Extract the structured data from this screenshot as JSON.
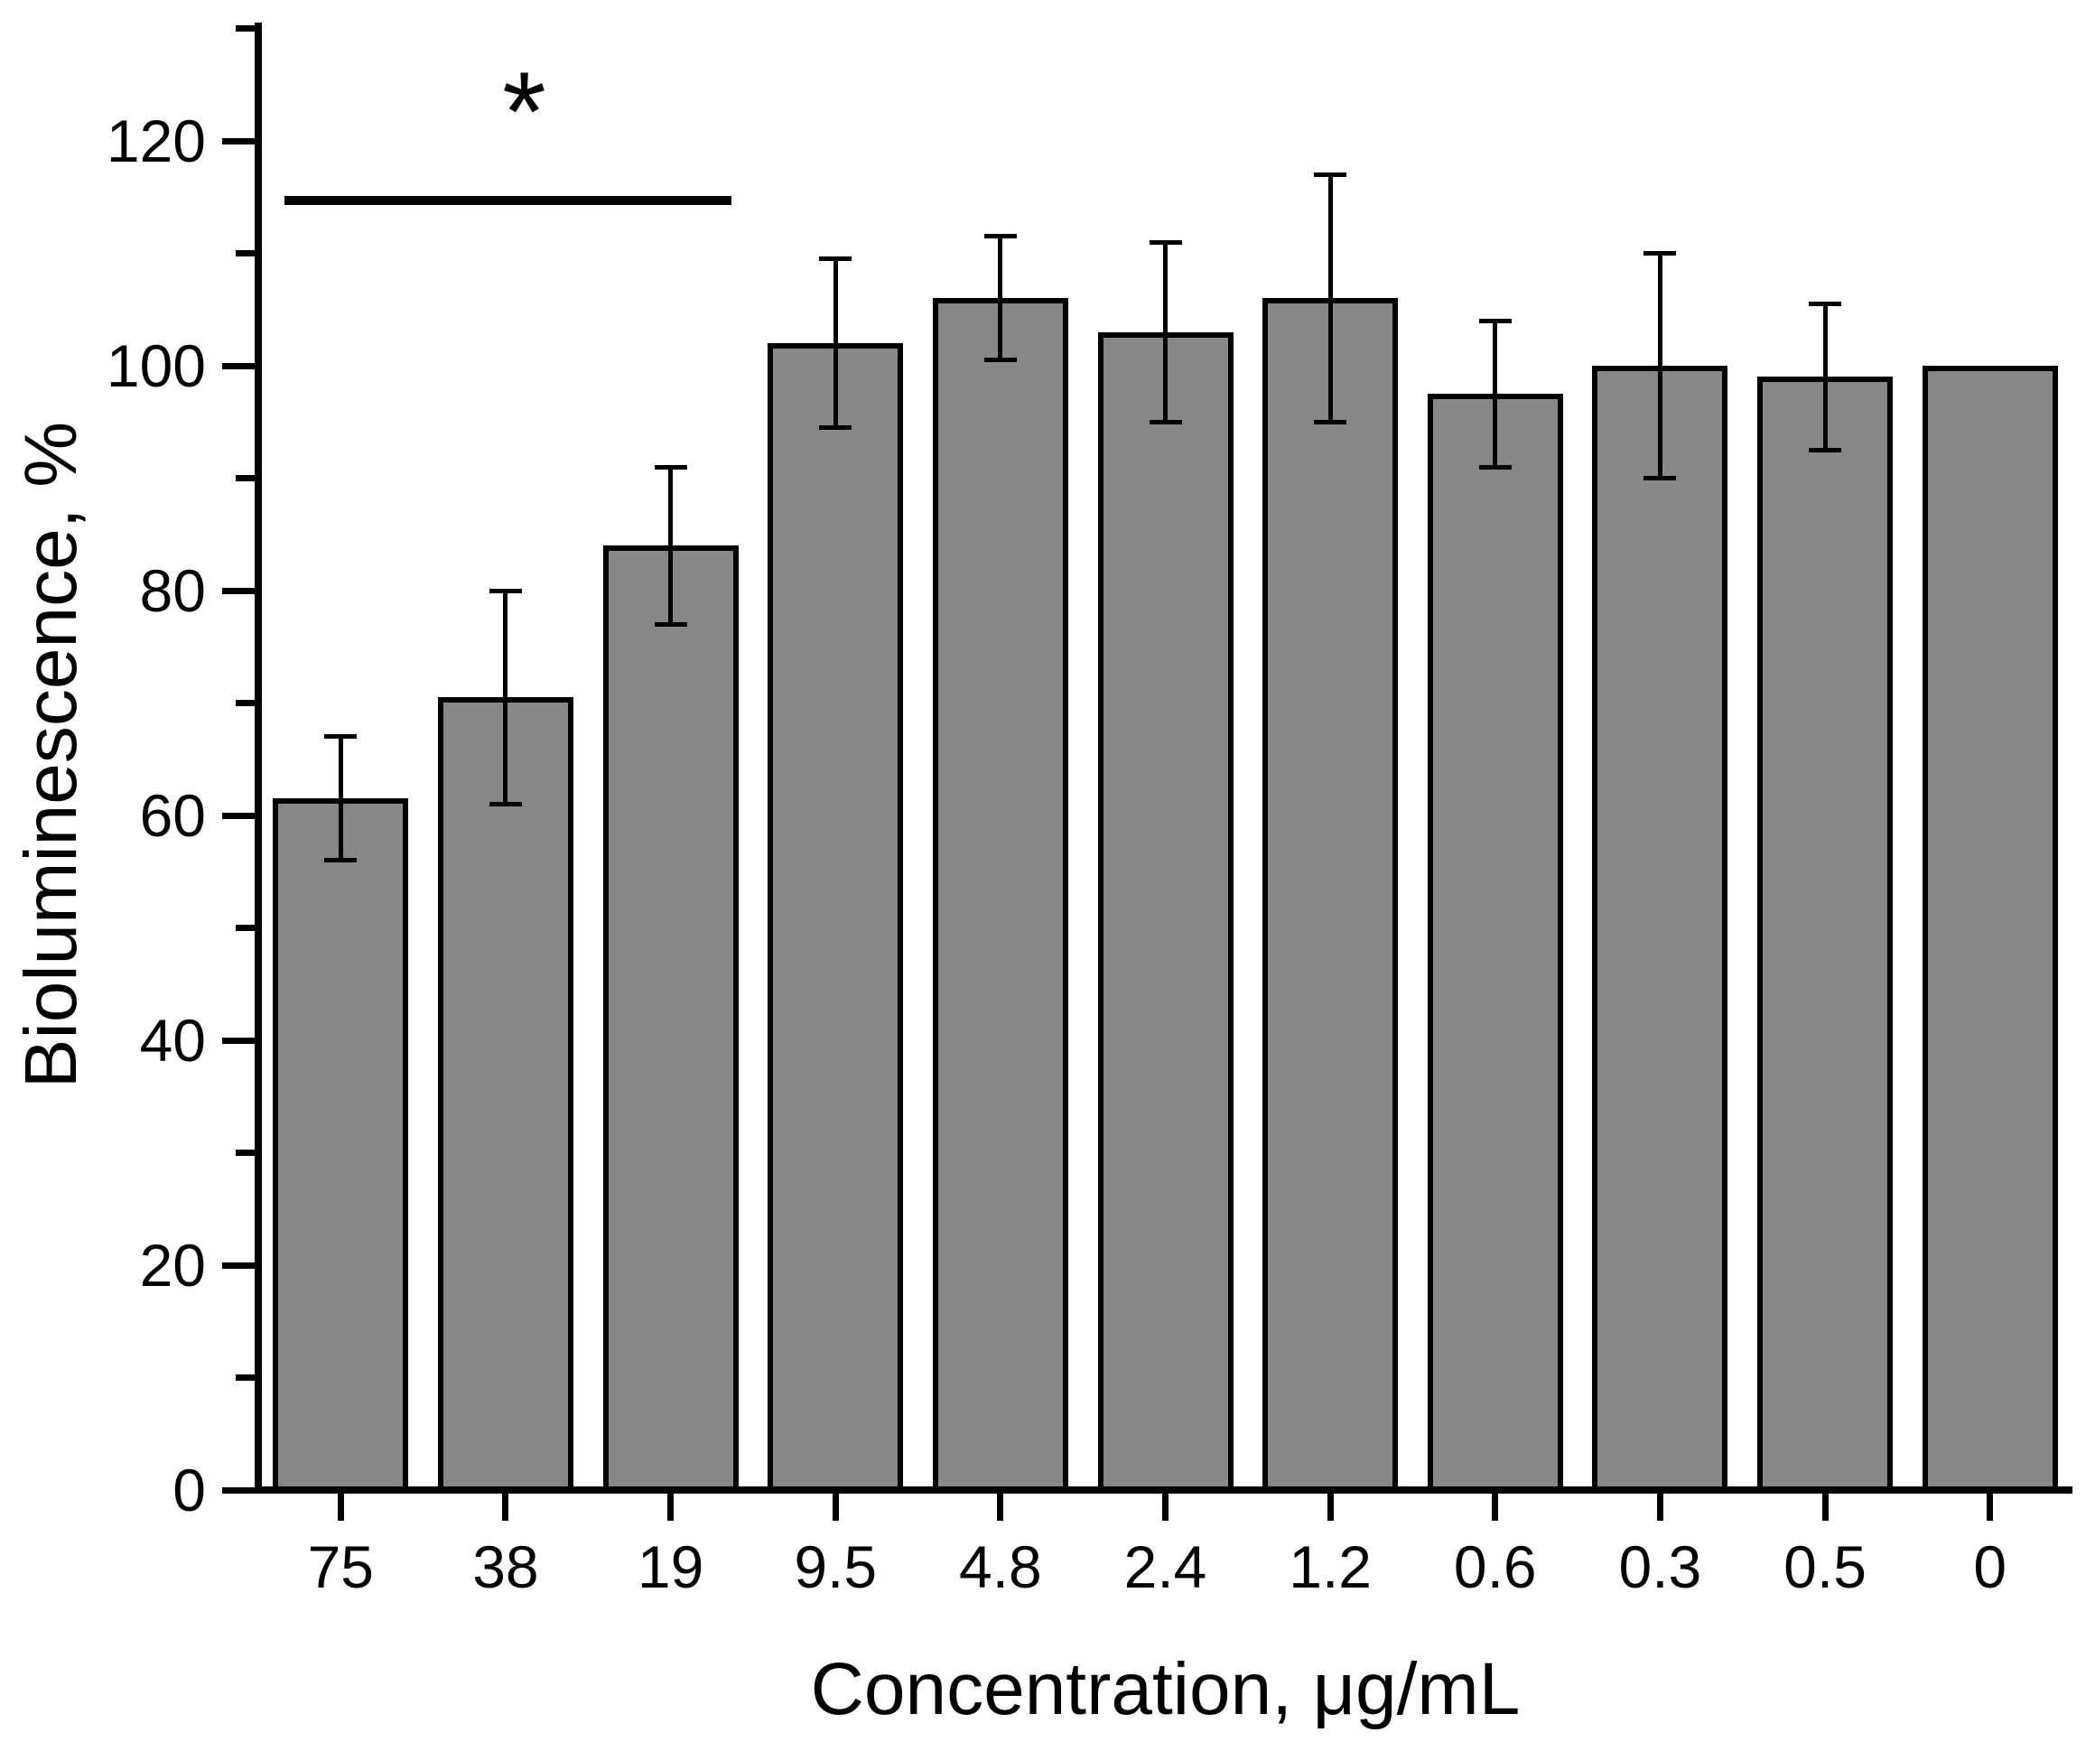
{
  "figure": {
    "background_color": "#ffffff",
    "axis_color": "#000000"
  },
  "chart_data": {
    "type": "bar",
    "title": "",
    "xlabel": "Concentration, μg/mL",
    "ylabel": "Bioluminescence, %",
    "categories": [
      "75",
      "38",
      "19",
      "9.5",
      "4.8",
      "2.4",
      "1.2",
      "0.6",
      "0.3",
      "0.5",
      "0"
    ],
    "values": [
      61.5,
      70.5,
      84,
      102,
      106,
      103,
      106,
      97.5,
      100,
      99,
      100
    ],
    "errors": [
      5.5,
      9.5,
      7,
      7.5,
      5.5,
      8,
      11,
      6.5,
      10,
      6.5,
      0
    ],
    "bar_color": "#878787",
    "bar_border_color": "#000000",
    "error_bar_color": "#000000",
    "ylim": [
      0,
      130
    ],
    "y_major_ticks": [
      0,
      20,
      40,
      60,
      80,
      100,
      120
    ],
    "y_minor_ticks": [
      10,
      30,
      50,
      70,
      90,
      110,
      130
    ],
    "grid": false,
    "legend": null,
    "significance": {
      "label": "*",
      "from_category": "75",
      "to_category": "19",
      "line_y_value": 115
    }
  }
}
